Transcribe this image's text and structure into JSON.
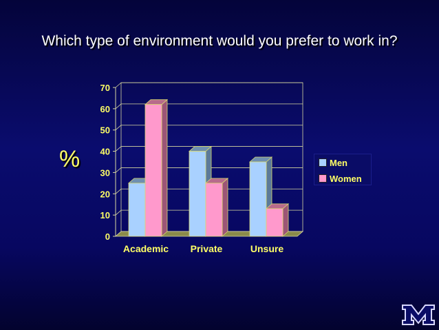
{
  "slide": {
    "title": "Which type of environment would you prefer to work in?",
    "logo_text": "M"
  },
  "colors": {
    "background_top": "#04043a",
    "background_mid": "#0a0c6e",
    "title": "#ffffff",
    "label": "#ffff66",
    "men": "#a9d1ff",
    "women": "#ff99cc"
  },
  "chart_data": {
    "type": "bar",
    "title": "",
    "xlabel": "",
    "ylabel": "%",
    "categories": [
      "Academic",
      "Private",
      "Unsure"
    ],
    "series": [
      {
        "name": "Men",
        "values": [
          25,
          40,
          35
        ]
      },
      {
        "name": "Women",
        "values": [
          62,
          25,
          13
        ]
      }
    ],
    "ylim": [
      0,
      70
    ],
    "yticks": [
      0,
      10,
      20,
      30,
      40,
      50,
      60,
      70
    ],
    "grid": true,
    "legend": "right",
    "style": "3d-columns"
  }
}
